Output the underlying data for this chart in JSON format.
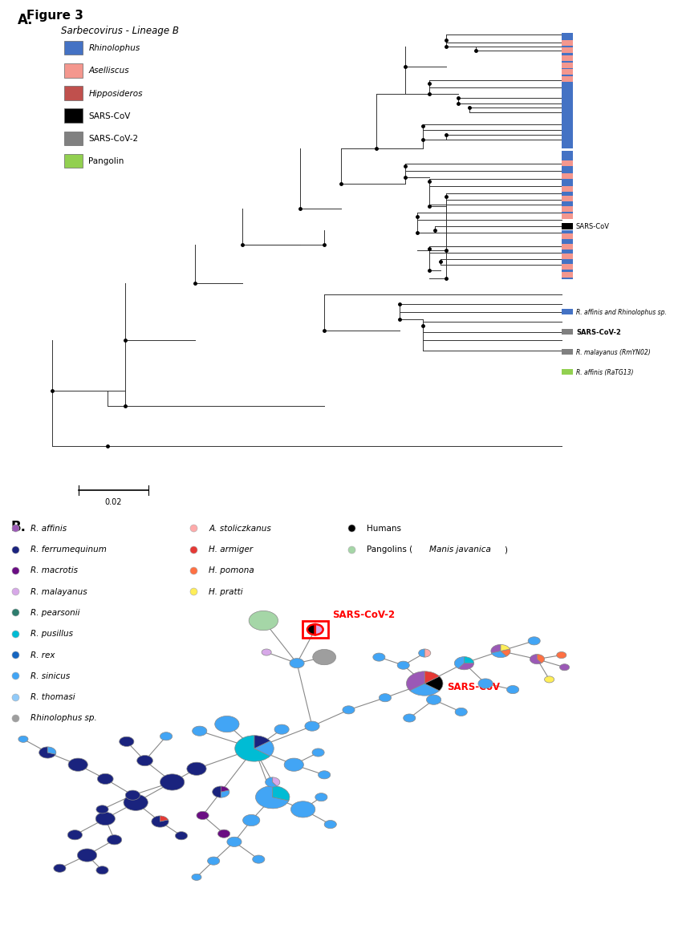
{
  "figure_title": "Figure 3",
  "panel_a_title": "Sarbecovirus - Lineage B",
  "legend_a": [
    {
      "label": "Rhinolophus",
      "color": "#4472C4",
      "italic": true
    },
    {
      "label": "Aselliscus",
      "color": "#F4978E",
      "italic": true
    },
    {
      "label": "Hipposideros",
      "color": "#C0504D",
      "italic": true
    },
    {
      "label": "SARS-CoV",
      "color": "#000000",
      "italic": false
    },
    {
      "label": "SARS-CoV-2",
      "color": "#808080",
      "italic": false
    },
    {
      "label": "Pangolin",
      "color": "#92D050",
      "italic": false
    }
  ],
  "sars_cov_label": "SARS-CoV",
  "sars_cov2_label": "SARS-CoV-2",
  "r_affinis_label": "R. affinis and Rhinolophus sp.",
  "r_malayanus_label": "R. malayanus (RmYN02)",
  "r_affinis2_label": "R. affinis (RaTG13)",
  "scale_label": "0.02",
  "legend_b_col1": [
    {
      "label": "R. affinis",
      "color": "#9B59B6"
    },
    {
      "label": "R. ferrumequinum",
      "color": "#1A237E"
    },
    {
      "label": "R. macrotis",
      "color": "#6A0D83"
    },
    {
      "label": "R. malayanus",
      "color": "#D7A8E8"
    },
    {
      "label": "R. pearsonii",
      "color": "#2E7D6E"
    },
    {
      "label": "R. pusillus",
      "color": "#00BCD4"
    },
    {
      "label": "R. rex",
      "color": "#1565C0"
    },
    {
      "label": "R. sinicus",
      "color": "#42A5F5"
    },
    {
      "label": "R. thomasi",
      "color": "#90CAF9"
    },
    {
      "label": "Rhinolophus sp.",
      "color": "#9E9E9E"
    }
  ],
  "legend_b_col2": [
    {
      "label": "A. stoliczkanus",
      "color": "#FFAAAA",
      "italic": true
    },
    {
      "label": "H. armiger",
      "color": "#E53935",
      "italic": true
    },
    {
      "label": "H. pomona",
      "color": "#FF7043",
      "italic": true
    },
    {
      "label": "H. pratti",
      "color": "#FFEE58",
      "italic": true
    }
  ],
  "legend_b_col3": [
    {
      "label": "Humans",
      "color": "#000000",
      "italic": false
    },
    {
      "label": "Pangolins (Manis javanica)",
      "color": "#A5D6A7",
      "italic": false
    }
  ],
  "colors": {
    "R. affinis": "#9B59B6",
    "R. ferrumequinum": "#1A237E",
    "R. macrotis": "#6A0D83",
    "R. malayanus": "#D7A8E8",
    "R. pearsonii": "#2E7D6E",
    "R. pusillus": "#00BCD4",
    "R. rex": "#1565C0",
    "R. sinicus": "#42A5F5",
    "R. thomasi": "#90CAF9",
    "Rhinolophus sp.": "#9E9E9E",
    "A. stoliczkanus": "#FFAAAA",
    "H. armiger": "#E53935",
    "H. pomona": "#FF7043",
    "H. pratti": "#FFEE58",
    "Humans": "#000000",
    "Pangolins": "#A5D6A7"
  }
}
